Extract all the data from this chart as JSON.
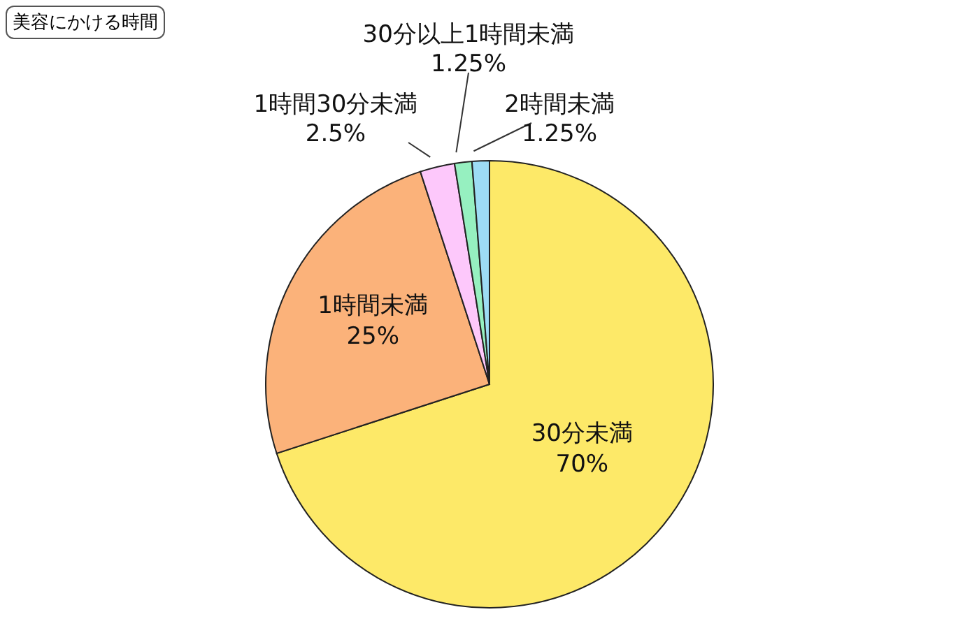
{
  "chart_data": {
    "type": "pie",
    "title": "美容にかける時間",
    "categories": [
      "30分未満",
      "1時間未満",
      "1時間30分未満",
      "30分以上1時間未満",
      "2時間未満"
    ],
    "values": [
      70,
      25,
      2.5,
      1.25,
      1.25
    ],
    "value_labels": [
      "70%",
      "25%",
      "2.5%",
      "1.25%",
      "1.25%"
    ],
    "colors": [
      "#fde968",
      "#fbb27a",
      "#fdc8fb",
      "#96f0c0",
      "#9ddcf5"
    ]
  }
}
